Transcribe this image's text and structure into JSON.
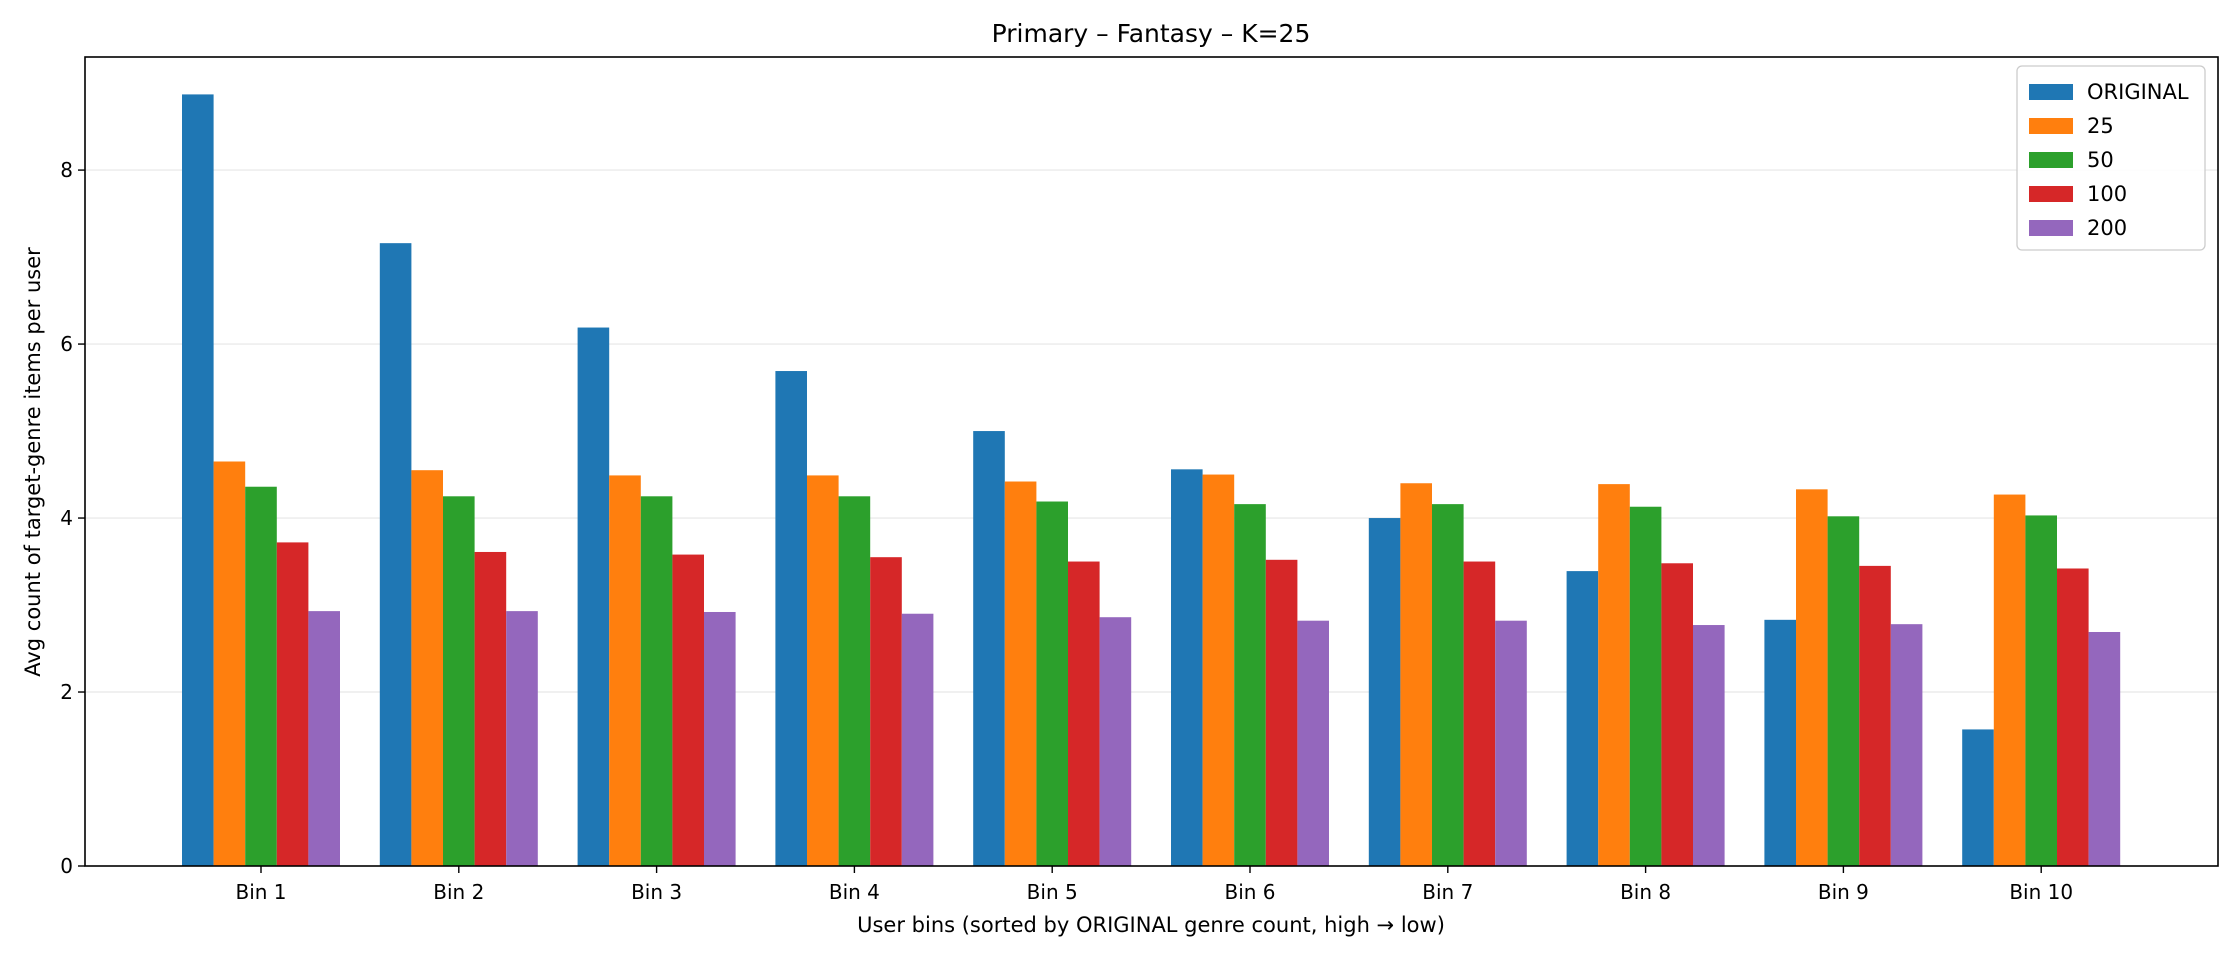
{
  "chart_data": {
    "type": "bar",
    "title": "Primary – Fantasy – K=25",
    "xlabel": "User bins (sorted by ORIGINAL genre count, high → low)",
    "ylabel": "Avg count of target-genre items per user",
    "categories": [
      "Bin 1",
      "Bin 2",
      "Bin 3",
      "Bin 4",
      "Bin 5",
      "Bin 6",
      "Bin 7",
      "Bin 8",
      "Bin 9",
      "Bin 10"
    ],
    "ylim": [
      0,
      9.3
    ],
    "yticks": [
      0,
      2,
      4,
      6,
      8
    ],
    "grid": "horizontal",
    "legend_position": "top-right",
    "series": [
      {
        "name": "ORIGINAL",
        "color": "#1f77b4",
        "values": [
          8.87,
          7.16,
          6.19,
          5.69,
          5.0,
          4.56,
          4.0,
          3.39,
          2.83,
          1.57
        ]
      },
      {
        "name": "25",
        "color": "#ff7f0e",
        "values": [
          4.65,
          4.55,
          4.49,
          4.49,
          4.42,
          4.5,
          4.4,
          4.39,
          4.33,
          4.27
        ]
      },
      {
        "name": "50",
        "color": "#2ca02c",
        "values": [
          4.36,
          4.25,
          4.25,
          4.25,
          4.19,
          4.16,
          4.16,
          4.13,
          4.02,
          4.03
        ]
      },
      {
        "name": "100",
        "color": "#d62728",
        "values": [
          3.72,
          3.61,
          3.58,
          3.55,
          3.5,
          3.52,
          3.5,
          3.48,
          3.45,
          3.42
        ]
      },
      {
        "name": "200",
        "color": "#9467bd",
        "values": [
          2.93,
          2.93,
          2.92,
          2.9,
          2.86,
          2.82,
          2.82,
          2.77,
          2.78,
          2.69
        ]
      }
    ]
  }
}
